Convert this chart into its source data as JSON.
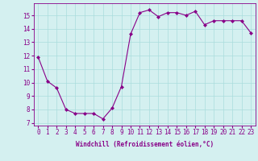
{
  "x": [
    0,
    1,
    2,
    3,
    4,
    5,
    6,
    7,
    8,
    9,
    10,
    11,
    12,
    13,
    14,
    15,
    16,
    17,
    18,
    19,
    20,
    21,
    22,
    23
  ],
  "y": [
    11.9,
    10.1,
    9.6,
    8.0,
    7.7,
    7.7,
    7.7,
    7.3,
    8.1,
    9.7,
    13.6,
    15.2,
    15.4,
    14.9,
    15.2,
    15.2,
    15.0,
    15.3,
    14.3,
    14.6,
    14.6,
    14.6,
    14.6,
    13.7
  ],
  "line_color": "#880088",
  "marker": "D",
  "marker_size": 2.0,
  "bg_color": "#d4f0f0",
  "grid_color": "#aadddd",
  "xlabel": "Windchill (Refroidissement éolien,°C)",
  "tick_color": "#880088",
  "xlim": [
    -0.5,
    23.5
  ],
  "ylim": [
    6.8,
    15.9
  ],
  "yticks": [
    7,
    8,
    9,
    10,
    11,
    12,
    13,
    14,
    15
  ],
  "xticks": [
    0,
    1,
    2,
    3,
    4,
    5,
    6,
    7,
    8,
    9,
    10,
    11,
    12,
    13,
    14,
    15,
    16,
    17,
    18,
    19,
    20,
    21,
    22,
    23
  ],
  "xlabel_fontsize": 5.5,
  "tick_fontsize": 5.5
}
